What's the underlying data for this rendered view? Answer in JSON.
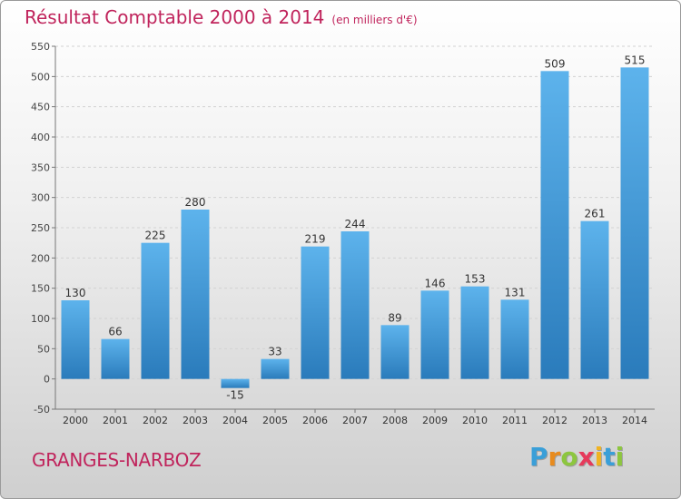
{
  "title": "Résultat Comptable 2000 à 2014",
  "subtitle": "(en milliers d'€)",
  "commune": "GRANGES-NARBOZ",
  "logo": {
    "letters": [
      "P",
      "r",
      "o",
      "x",
      "i",
      "t",
      "i"
    ],
    "colors": [
      "#3a9fd8",
      "#e88b1e",
      "#8dc63f",
      "#e63a5b",
      "#f0b322",
      "#3a9fd8",
      "#8dc63f"
    ]
  },
  "colors": {
    "bar": "#4aa3e2",
    "bar_dark": "#2e7fc0",
    "accent": "#c0245c"
  },
  "chart_data": {
    "type": "bar",
    "categories": [
      "2000",
      "2001",
      "2002",
      "2003",
      "2004",
      "2005",
      "2006",
      "2007",
      "2008",
      "2009",
      "2010",
      "2011",
      "2012",
      "2013",
      "2014"
    ],
    "values": [
      130,
      66,
      225,
      280,
      -15,
      33,
      219,
      244,
      89,
      146,
      153,
      131,
      509,
      261,
      515
    ],
    "value_labels": [
      "130",
      "66",
      "225",
      "280",
      "-15",
      "33",
      "219",
      "244",
      "89",
      "146",
      "153",
      "131",
      "509",
      "261",
      "515"
    ],
    "ylim": [
      -50,
      550
    ],
    "yticks": [
      -50,
      0,
      50,
      100,
      150,
      200,
      250,
      300,
      350,
      400,
      450,
      500,
      550
    ],
    "grid": true
  }
}
